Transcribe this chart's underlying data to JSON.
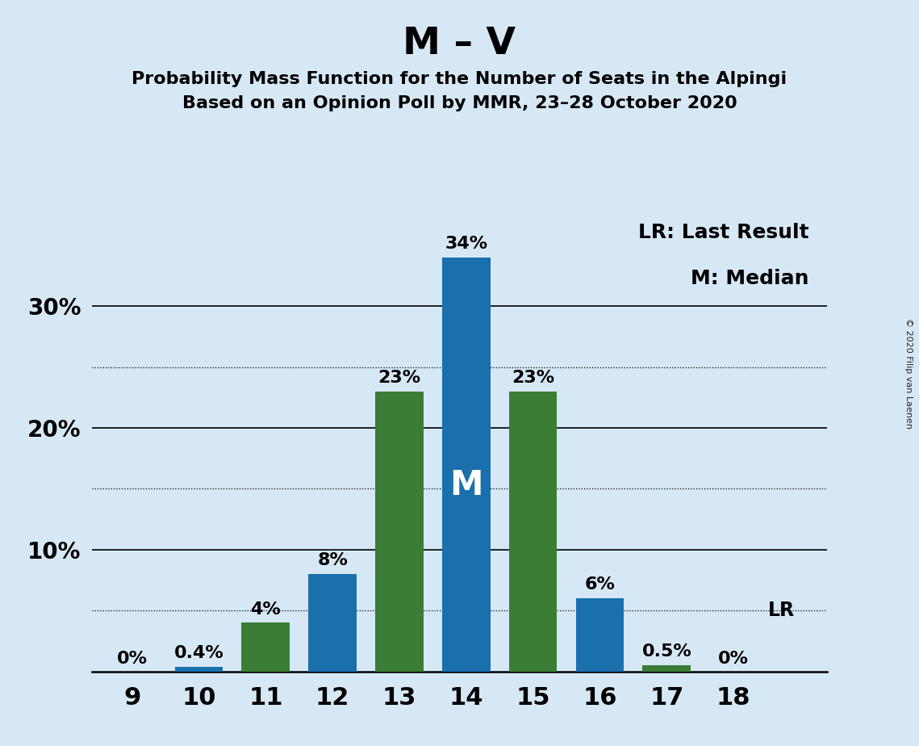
{
  "title": "M – V",
  "subtitle1": "Probability Mass Function for the Number of Seats in the Alpingi",
  "subtitle2": "Based on an Opinion Poll by MMR, 23–28 October 2020",
  "copyright": "© 2020 Filip van Laenen",
  "legend_lr": "LR: Last Result",
  "legend_m": "M: Median",
  "seats": [
    9,
    10,
    11,
    12,
    13,
    14,
    15,
    16,
    17,
    18
  ],
  "blue_values": [
    0.0,
    0.4,
    0.0,
    8.0,
    0.0,
    34.0,
    0.0,
    6.0,
    0.0,
    0.0
  ],
  "green_values": [
    0.0,
    0.0,
    4.0,
    0.0,
    23.0,
    0.0,
    23.0,
    0.0,
    0.5,
    0.0
  ],
  "blue_color": "#1A6FAD",
  "green_color": "#3A7D35",
  "bar_labels_blue": [
    "0%",
    "0.4%",
    "",
    "8%",
    "",
    "34%",
    "",
    "6%",
    "",
    "0%"
  ],
  "bar_labels_green": [
    "",
    "",
    "4%",
    "",
    "23%",
    "",
    "23%",
    "",
    "0.5%",
    ""
  ],
  "median_seat": 14,
  "median_label": "M",
  "lr_value": 5.0,
  "lr_label": "LR",
  "ylim_max": 38,
  "solid_grid": [
    10,
    20,
    30
  ],
  "dotted_grid": [
    5,
    15,
    25
  ],
  "background_color": "#D6E8F5",
  "bar_width": 0.72,
  "title_fontsize": 34,
  "subtitle_fontsize": 16,
  "label_fontsize": 16,
  "ytick_fontsize": 20,
  "xtick_fontsize": 22,
  "legend_fontsize": 18,
  "median_label_fontsize": 30,
  "lr_fontsize": 17
}
